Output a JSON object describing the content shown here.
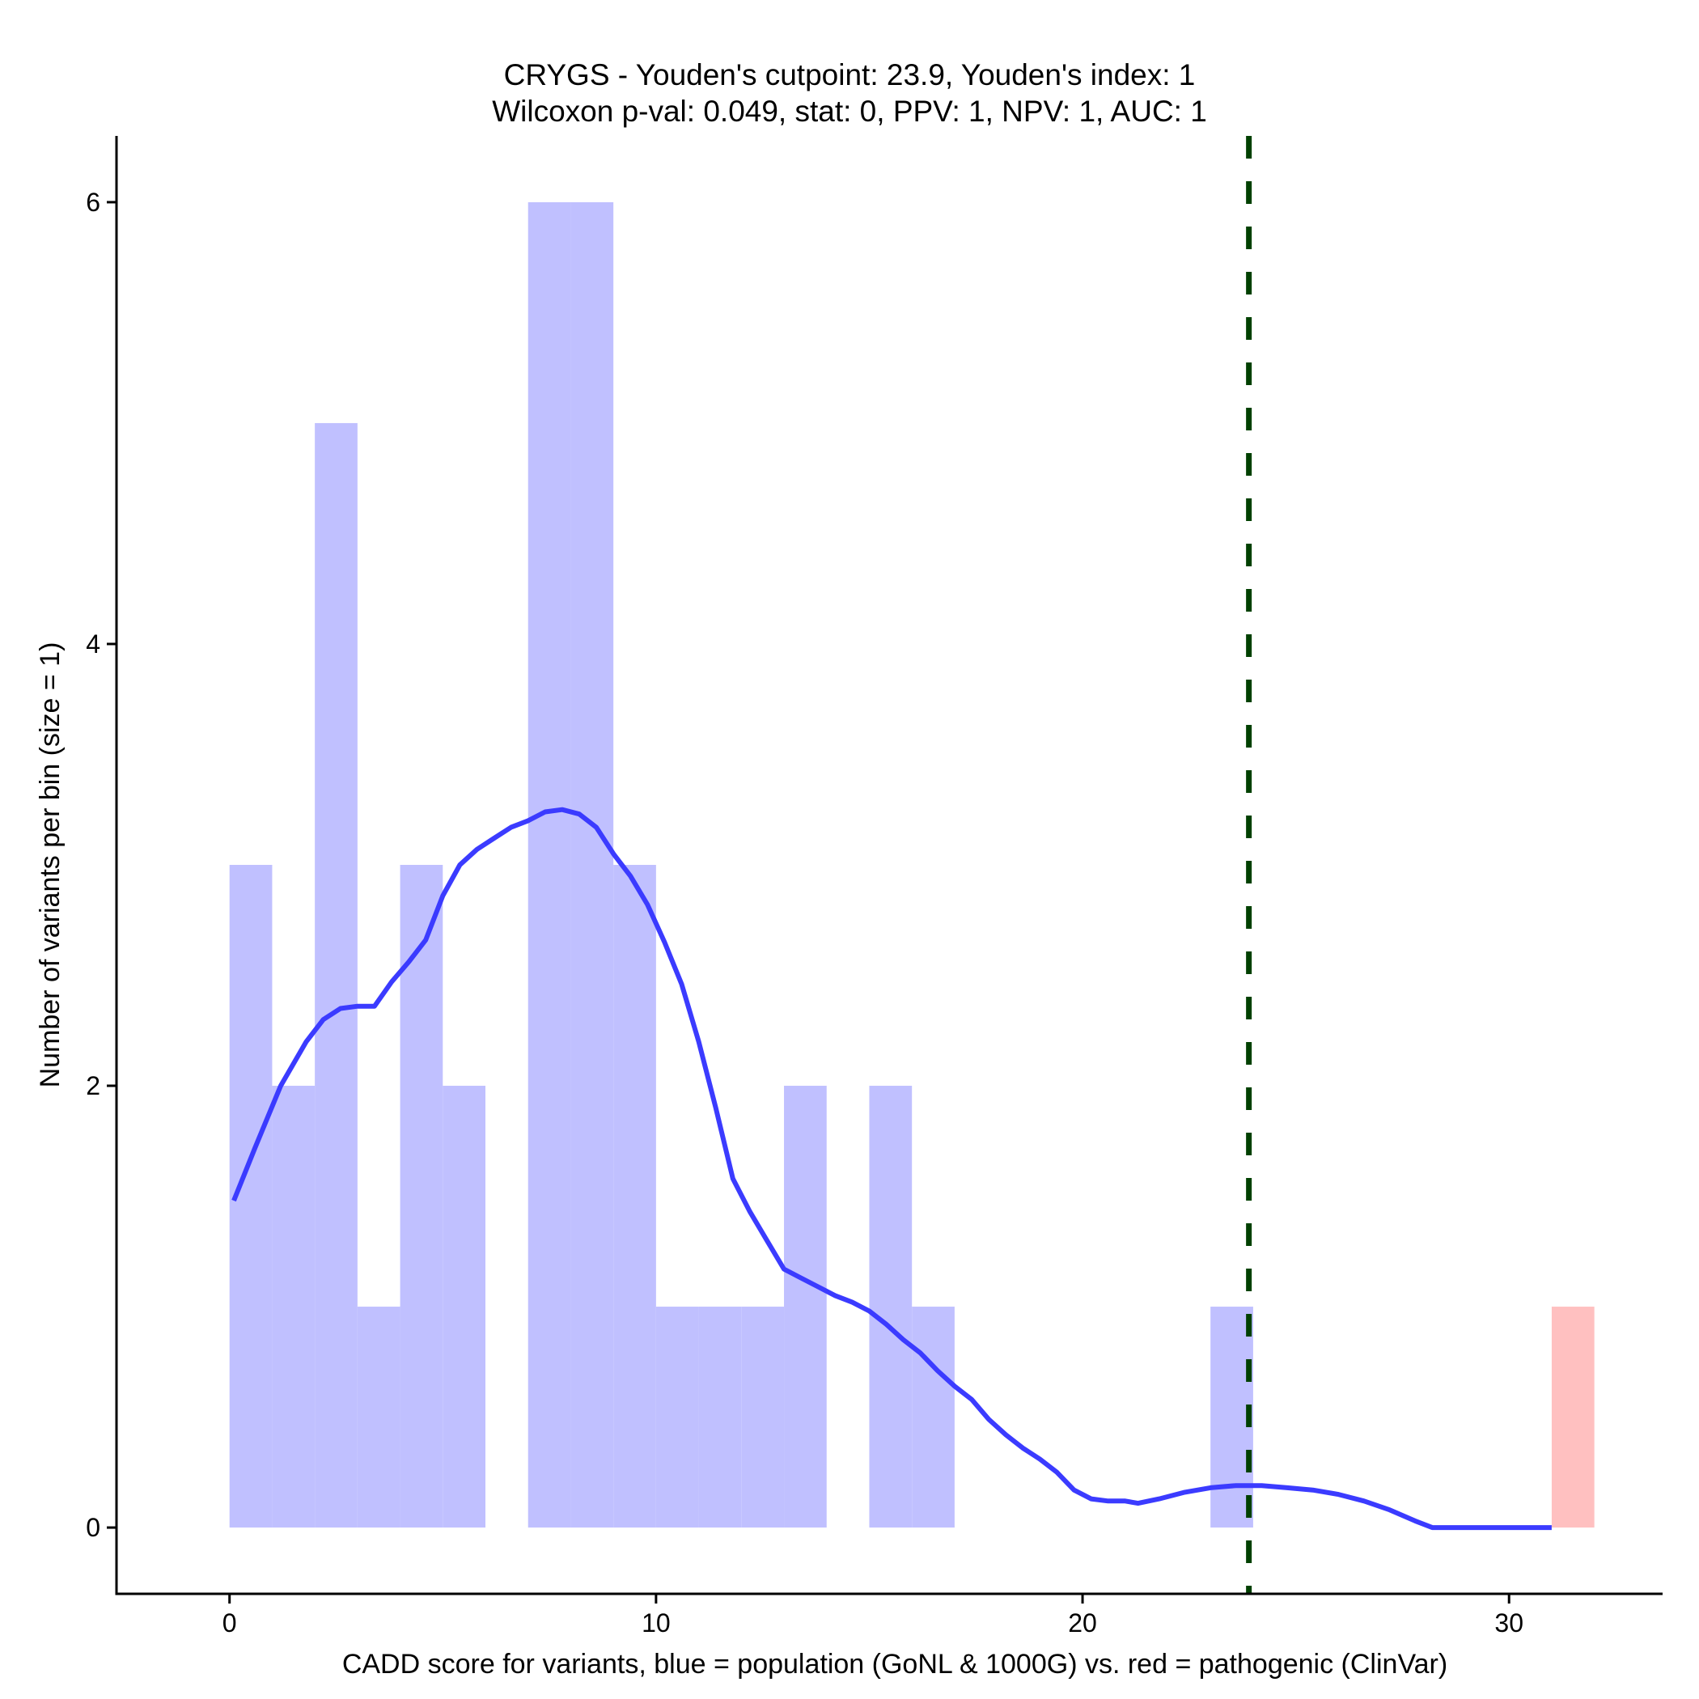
{
  "chart_data": {
    "type": "bar",
    "title_line1": "CRYGS - Youden's cutpoint: 23.9, Youden's index: 1",
    "title_line2": "Wilcoxon p-val: 0.049, stat: 0, PPV: 1, NPV: 1, AUC: 1",
    "xlabel": "CADD score for variants, blue = population (GoNL & 1000G) vs. red = pathogenic (ClinVar)",
    "ylabel": "Number of variants per bin (size = 1)",
    "xlim": [
      -2.65,
      33.6
    ],
    "ylim": [
      -0.3,
      6.3
    ],
    "x_ticks": [
      0,
      10,
      20,
      30
    ],
    "y_ticks": [
      0,
      2,
      4,
      6
    ],
    "bin_width": 1,
    "series": [
      {
        "name": "population (GoNL & 1000G)",
        "color": "#c0c0ff",
        "bins": [
          {
            "x0": 0,
            "count": 3
          },
          {
            "x0": 1,
            "count": 2
          },
          {
            "x0": 2,
            "count": 5
          },
          {
            "x0": 3,
            "count": 1
          },
          {
            "x0": 4,
            "count": 3
          },
          {
            "x0": 5,
            "count": 2
          },
          {
            "x0": 6,
            "count": 0
          },
          {
            "x0": 7,
            "count": 6
          },
          {
            "x0": 8,
            "count": 6
          },
          {
            "x0": 9,
            "count": 3
          },
          {
            "x0": 10,
            "count": 1
          },
          {
            "x0": 11,
            "count": 1
          },
          {
            "x0": 12,
            "count": 1
          },
          {
            "x0": 13,
            "count": 2
          },
          {
            "x0": 14,
            "count": 0
          },
          {
            "x0": 15,
            "count": 2
          },
          {
            "x0": 16,
            "count": 1
          },
          {
            "x0": 23,
            "count": 1
          }
        ]
      },
      {
        "name": "pathogenic (ClinVar)",
        "color": "#ffc0c0",
        "bins": [
          {
            "x0": 31,
            "count": 1
          }
        ]
      }
    ],
    "density_curve": {
      "color": "#3b3bff",
      "points": [
        [
          0.1,
          1.48
        ],
        [
          0.6,
          1.72
        ],
        [
          1.2,
          2.0
        ],
        [
          1.8,
          2.2
        ],
        [
          2.2,
          2.3
        ],
        [
          2.6,
          2.35
        ],
        [
          3.0,
          2.36
        ],
        [
          3.4,
          2.36
        ],
        [
          3.8,
          2.47
        ],
        [
          4.2,
          2.56
        ],
        [
          4.6,
          2.66
        ],
        [
          5.0,
          2.86
        ],
        [
          5.4,
          3.0
        ],
        [
          5.8,
          3.07
        ],
        [
          6.2,
          3.12
        ],
        [
          6.6,
          3.17
        ],
        [
          7.0,
          3.2
        ],
        [
          7.4,
          3.24
        ],
        [
          7.8,
          3.25
        ],
        [
          8.2,
          3.23
        ],
        [
          8.6,
          3.17
        ],
        [
          9.0,
          3.05
        ],
        [
          9.4,
          2.95
        ],
        [
          9.8,
          2.82
        ],
        [
          10.2,
          2.65
        ],
        [
          10.6,
          2.46
        ],
        [
          11.0,
          2.2
        ],
        [
          11.4,
          1.9
        ],
        [
          11.8,
          1.58
        ],
        [
          12.2,
          1.43
        ],
        [
          12.6,
          1.3
        ],
        [
          13.0,
          1.17
        ],
        [
          13.4,
          1.13
        ],
        [
          13.8,
          1.09
        ],
        [
          14.2,
          1.05
        ],
        [
          14.6,
          1.02
        ],
        [
          15.0,
          0.98
        ],
        [
          15.4,
          0.92
        ],
        [
          15.8,
          0.85
        ],
        [
          16.2,
          0.79
        ],
        [
          16.6,
          0.71
        ],
        [
          17.0,
          0.64
        ],
        [
          17.4,
          0.58
        ],
        [
          17.8,
          0.49
        ],
        [
          18.2,
          0.42
        ],
        [
          18.6,
          0.36
        ],
        [
          19.0,
          0.31
        ],
        [
          19.4,
          0.25
        ],
        [
          19.8,
          0.17
        ],
        [
          20.2,
          0.13
        ],
        [
          20.6,
          0.12
        ],
        [
          21.0,
          0.12
        ],
        [
          21.3,
          0.11
        ],
        [
          21.8,
          0.13
        ],
        [
          22.4,
          0.16
        ],
        [
          23.0,
          0.18
        ],
        [
          23.6,
          0.19
        ],
        [
          24.2,
          0.19
        ],
        [
          24.8,
          0.18
        ],
        [
          25.4,
          0.17
        ],
        [
          26.0,
          0.15
        ],
        [
          26.6,
          0.12
        ],
        [
          27.2,
          0.08
        ],
        [
          27.8,
          0.03
        ],
        [
          28.2,
          0.0
        ],
        [
          29.0,
          0.0
        ],
        [
          30.0,
          0.0
        ],
        [
          31.0,
          0.0
        ]
      ]
    },
    "cutpoint": {
      "x": 23.9,
      "color": "#004000",
      "style": "dashed"
    },
    "grid": false,
    "legend": "none"
  }
}
